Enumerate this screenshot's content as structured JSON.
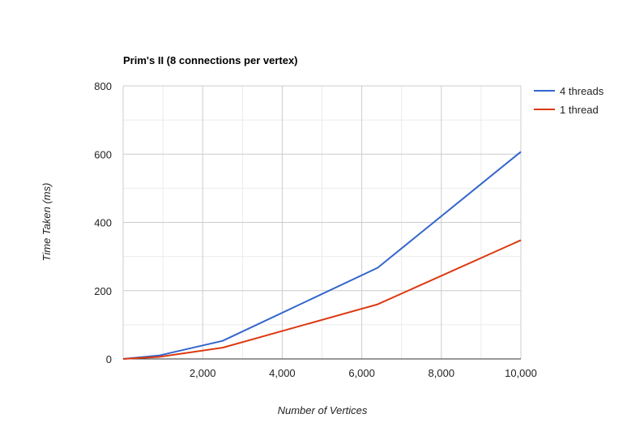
{
  "chart_data": {
    "type": "line",
    "title": "Prim's II (8 connections per vertex)",
    "xlabel": "Number of Vertices",
    "ylabel": "Time Taken (ms)",
    "xlim": [
      0,
      10000
    ],
    "ylim": [
      0,
      800
    ],
    "x_ticks": [
      2000,
      4000,
      6000,
      8000,
      10000
    ],
    "x_tick_labels": [
      "2,000",
      "4,000",
      "6,000",
      "8,000",
      "10,000"
    ],
    "y_ticks": [
      0,
      200,
      400,
      600,
      800
    ],
    "y_tick_labels": [
      "0",
      "200",
      "400",
      "600",
      "800"
    ],
    "grid": true,
    "legend_position": "right",
    "series": [
      {
        "name": "4 threads",
        "color": "#3366cc",
        "x": [
          0,
          900,
          2500,
          6400,
          10000
        ],
        "y": [
          0,
          10,
          53,
          267,
          607
        ]
      },
      {
        "name": "1 thread",
        "color": "#dc3912",
        "x": [
          0,
          900,
          2500,
          6400,
          10000
        ],
        "y": [
          0,
          6,
          33,
          160,
          348
        ]
      }
    ]
  }
}
